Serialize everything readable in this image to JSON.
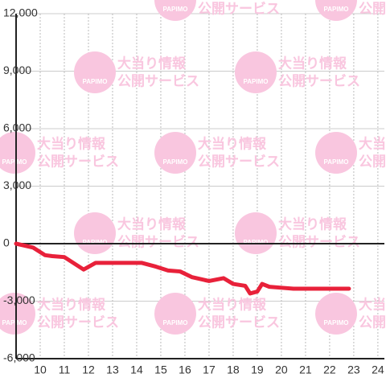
{
  "chart_data": {
    "type": "line",
    "watermark": {
      "brand": "PAPIMO",
      "lines": [
        "大当り情報",
        "公開サービス"
      ]
    },
    "x": [
      9,
      9.7,
      10.2,
      10.5,
      11,
      11.8,
      12.3,
      13,
      14.2,
      14.8,
      15.3,
      15.8,
      16.3,
      17,
      17.6,
      18,
      18.5,
      18.7,
      19,
      19.2,
      19.5,
      20,
      20.5,
      22.8
    ],
    "series": [
      {
        "color": "#e8213a",
        "values": [
          0,
          -200,
          -600,
          -650,
          -700,
          -1350,
          -1000,
          -1000,
          -1000,
          -1200,
          -1400,
          -1450,
          -1750,
          -1950,
          -1800,
          -2100,
          -2200,
          -2600,
          -2500,
          -2100,
          -2250,
          -2300,
          -2350,
          -2350
        ]
      }
    ],
    "xlim": [
      9,
      24.27
    ],
    "ylim": [
      -6000,
      12000
    ],
    "xticks": [
      10,
      11,
      12,
      13,
      14,
      15,
      16,
      17,
      18,
      19,
      20,
      21,
      22,
      23,
      24
    ],
    "yticks": [
      {
        "value": -6000,
        "label": "-6,000"
      },
      {
        "value": -3000,
        "label": "-3,000"
      },
      0,
      {
        "value": 3000,
        "label": "3,000"
      },
      {
        "value": 6000,
        "label": "6,000"
      },
      {
        "value": 9000,
        "label": "9,000"
      },
      {
        "value": 12000,
        "label": "12,000"
      }
    ],
    "grid": true
  }
}
